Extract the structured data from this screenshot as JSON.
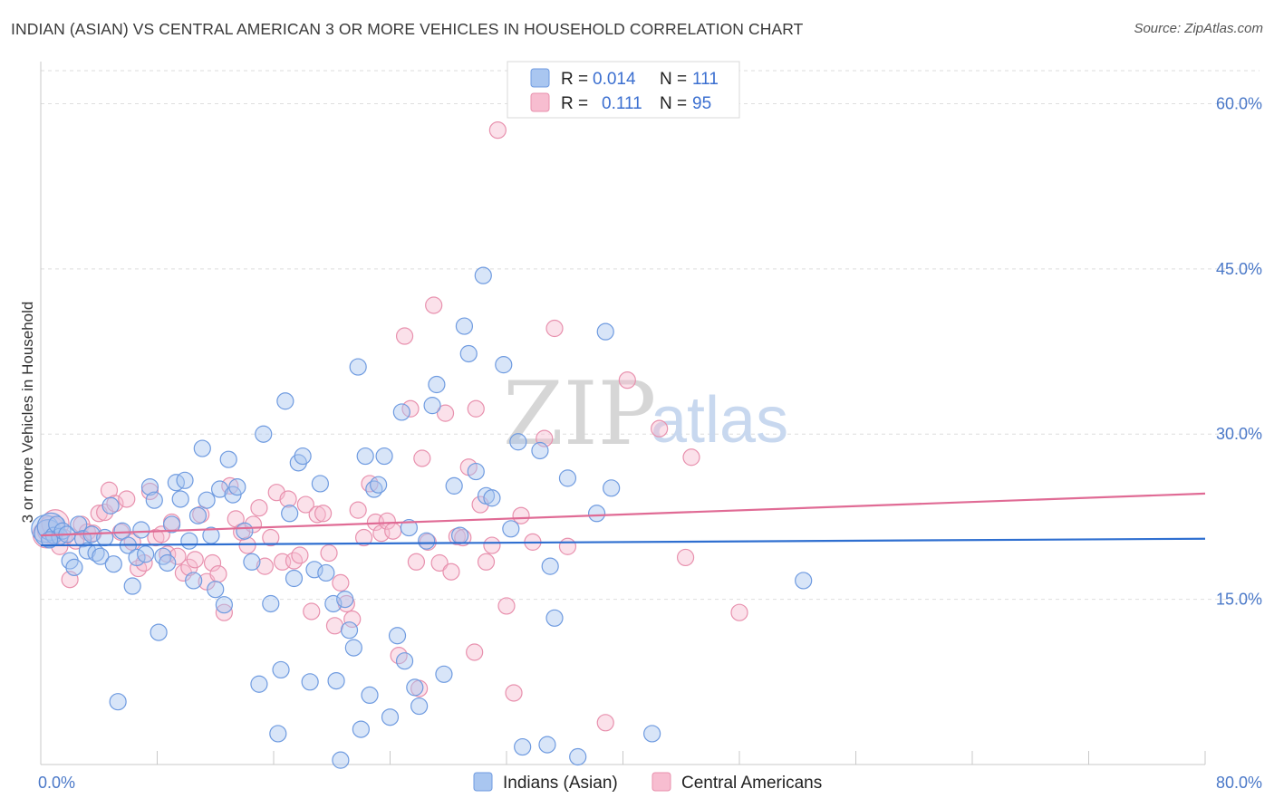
{
  "title": "INDIAN (ASIAN) VS CENTRAL AMERICAN 3 OR MORE VEHICLES IN HOUSEHOLD CORRELATION CHART",
  "source": "Source: ZipAtlas.com",
  "watermark": {
    "zip": "ZIP",
    "atlas": "atlas"
  },
  "legend": {
    "rows": [
      {
        "r_label": "R =",
        "r_value": "0.014",
        "n_label": "N =",
        "n_value": "111"
      },
      {
        "r_label": "R =",
        "r_value": "0.111",
        "n_label": "N =",
        "n_value": "95"
      }
    ]
  },
  "bottom_legend": {
    "series1": "Indians (Asian)",
    "series2": "Central Americans"
  },
  "colors": {
    "blue_fill": "#a9c6f0",
    "blue_stroke": "#6f9be0",
    "blue_line": "#2f6fd0",
    "pink_fill": "#f7bdd0",
    "pink_stroke": "#e891ae",
    "pink_line": "#e06b95",
    "tick_text": "#4a78c8",
    "grid": "#dedede"
  },
  "chart_data": {
    "type": "scatter",
    "title": "INDIAN (ASIAN) VS CENTRAL AMERICAN 3 OR MORE VEHICLES IN HOUSEHOLD CORRELATION CHART",
    "xlabel": "",
    "ylabel": "3 or more Vehicles in Household",
    "xlim": [
      0,
      80
    ],
    "ylim": [
      0,
      63
    ],
    "x_tick_labels": [
      "0.0%",
      "80.0%"
    ],
    "y_ticks": [
      15,
      30,
      45,
      60
    ],
    "y_tick_labels": [
      "15.0%",
      "30.0%",
      "45.0%",
      "60.0%"
    ],
    "grid": true,
    "legend_position": "top-center",
    "series": [
      {
        "name": "Indians (Asian)",
        "r": 0.014,
        "n": 111,
        "trend": {
          "x": [
            0,
            80
          ],
          "y": [
            19.9,
            20.5
          ]
        },
        "points": [
          [
            0.3,
            21.4
          ],
          [
            0.5,
            21.0
          ],
          [
            0.7,
            21.6
          ],
          [
            0.9,
            20.8
          ],
          [
            1.1,
            21.8
          ],
          [
            1.3,
            20.7
          ],
          [
            1.5,
            21.2
          ],
          [
            1.8,
            20.9
          ],
          [
            2.0,
            18.5
          ],
          [
            2.3,
            17.9
          ],
          [
            2.6,
            21.8
          ],
          [
            2.9,
            20.5
          ],
          [
            3.2,
            19.4
          ],
          [
            3.5,
            20.9
          ],
          [
            3.8,
            19.2
          ],
          [
            4.1,
            18.9
          ],
          [
            4.4,
            20.6
          ],
          [
            4.8,
            23.5
          ],
          [
            5.0,
            18.2
          ],
          [
            5.3,
            5.7
          ],
          [
            5.6,
            21.2
          ],
          [
            6.0,
            19.9
          ],
          [
            6.3,
            16.2
          ],
          [
            6.6,
            18.8
          ],
          [
            6.9,
            21.3
          ],
          [
            7.2,
            19.1
          ],
          [
            7.5,
            25.2
          ],
          [
            7.8,
            24.0
          ],
          [
            8.1,
            12.0
          ],
          [
            8.4,
            18.9
          ],
          [
            8.7,
            18.3
          ],
          [
            9.0,
            21.8
          ],
          [
            9.3,
            25.6
          ],
          [
            9.6,
            24.1
          ],
          [
            9.9,
            25.8
          ],
          [
            10.2,
            20.3
          ],
          [
            10.5,
            16.7
          ],
          [
            10.8,
            22.6
          ],
          [
            11.1,
            28.7
          ],
          [
            11.4,
            24.0
          ],
          [
            11.7,
            20.8
          ],
          [
            12.0,
            15.9
          ],
          [
            12.3,
            25.0
          ],
          [
            12.6,
            14.5
          ],
          [
            12.9,
            27.7
          ],
          [
            13.2,
            24.5
          ],
          [
            13.5,
            25.2
          ],
          [
            14.0,
            21.2
          ],
          [
            14.5,
            18.4
          ],
          [
            15.0,
            7.3
          ],
          [
            15.3,
            30.0
          ],
          [
            15.8,
            14.6
          ],
          [
            16.3,
            2.8
          ],
          [
            16.5,
            8.6
          ],
          [
            16.8,
            33.0
          ],
          [
            17.1,
            22.8
          ],
          [
            17.4,
            16.9
          ],
          [
            17.7,
            27.4
          ],
          [
            18.0,
            28.0
          ],
          [
            18.5,
            7.5
          ],
          [
            18.8,
            17.7
          ],
          [
            19.2,
            25.5
          ],
          [
            19.6,
            17.4
          ],
          [
            20.1,
            14.6
          ],
          [
            20.3,
            7.6
          ],
          [
            20.6,
            0.4
          ],
          [
            20.9,
            15.0
          ],
          [
            21.2,
            12.2
          ],
          [
            21.5,
            10.6
          ],
          [
            21.8,
            36.1
          ],
          [
            22.0,
            3.2
          ],
          [
            22.3,
            28.0
          ],
          [
            22.6,
            6.3
          ],
          [
            22.9,
            25.0
          ],
          [
            23.2,
            25.4
          ],
          [
            23.6,
            28.0
          ],
          [
            24.0,
            4.3
          ],
          [
            24.5,
            11.7
          ],
          [
            24.8,
            32.0
          ],
          [
            25.0,
            9.4
          ],
          [
            25.3,
            21.5
          ],
          [
            25.7,
            7.0
          ],
          [
            26.0,
            5.3
          ],
          [
            26.5,
            20.3
          ],
          [
            26.9,
            32.6
          ],
          [
            27.2,
            34.5
          ],
          [
            27.7,
            8.2
          ],
          [
            28.4,
            25.3
          ],
          [
            28.8,
            20.8
          ],
          [
            29.1,
            39.8
          ],
          [
            29.4,
            37.3
          ],
          [
            29.9,
            26.6
          ],
          [
            30.4,
            44.4
          ],
          [
            30.6,
            24.4
          ],
          [
            31.0,
            24.2
          ],
          [
            31.8,
            36.3
          ],
          [
            32.3,
            21.4
          ],
          [
            32.8,
            29.3
          ],
          [
            33.1,
            1.6
          ],
          [
            34.3,
            28.5
          ],
          [
            34.8,
            1.8
          ],
          [
            35.0,
            18.0
          ],
          [
            35.3,
            13.3
          ],
          [
            36.2,
            26.0
          ],
          [
            36.9,
            0.7
          ],
          [
            38.2,
            22.8
          ],
          [
            38.8,
            39.3
          ],
          [
            39.2,
            25.1
          ],
          [
            42.0,
            2.8
          ],
          [
            52.4,
            16.7
          ],
          [
            0.6,
            20.4
          ]
        ]
      },
      {
        "name": "Central Americans",
        "r": 0.111,
        "n": 95,
        "trend": {
          "x": [
            0,
            80
          ],
          "y": [
            20.8,
            24.6
          ]
        },
        "points": [
          [
            0.4,
            20.9
          ],
          [
            0.7,
            21.3
          ],
          [
            1.0,
            21.9
          ],
          [
            1.3,
            19.8
          ],
          [
            1.6,
            20.6
          ],
          [
            2.0,
            16.8
          ],
          [
            2.4,
            20.3
          ],
          [
            2.8,
            21.8
          ],
          [
            3.2,
            21.1
          ],
          [
            3.6,
            21.0
          ],
          [
            4.0,
            22.8
          ],
          [
            4.4,
            22.9
          ],
          [
            4.7,
            24.9
          ],
          [
            5.1,
            23.7
          ],
          [
            5.5,
            21.1
          ],
          [
            5.9,
            24.1
          ],
          [
            6.3,
            20.2
          ],
          [
            6.7,
            17.8
          ],
          [
            7.1,
            18.3
          ],
          [
            7.5,
            24.8
          ],
          [
            7.9,
            20.6
          ],
          [
            8.3,
            20.9
          ],
          [
            8.7,
            19.1
          ],
          [
            9.0,
            22.0
          ],
          [
            9.4,
            18.9
          ],
          [
            9.8,
            17.4
          ],
          [
            10.2,
            17.9
          ],
          [
            10.6,
            18.6
          ],
          [
            11.0,
            22.7
          ],
          [
            11.4,
            16.6
          ],
          [
            11.8,
            18.3
          ],
          [
            12.2,
            17.3
          ],
          [
            12.6,
            13.8
          ],
          [
            13.0,
            25.3
          ],
          [
            13.4,
            22.3
          ],
          [
            13.8,
            21.1
          ],
          [
            14.2,
            19.9
          ],
          [
            14.6,
            21.8
          ],
          [
            15.0,
            23.3
          ],
          [
            15.4,
            18.0
          ],
          [
            15.8,
            20.6
          ],
          [
            16.2,
            24.7
          ],
          [
            16.6,
            18.4
          ],
          [
            17.0,
            24.1
          ],
          [
            17.4,
            18.5
          ],
          [
            17.8,
            19.0
          ],
          [
            18.2,
            23.6
          ],
          [
            18.6,
            13.9
          ],
          [
            19.0,
            22.7
          ],
          [
            19.4,
            22.8
          ],
          [
            19.8,
            19.2
          ],
          [
            20.2,
            12.6
          ],
          [
            20.6,
            16.5
          ],
          [
            21.0,
            14.6
          ],
          [
            21.4,
            13.2
          ],
          [
            21.8,
            23.1
          ],
          [
            22.2,
            20.6
          ],
          [
            22.6,
            25.5
          ],
          [
            23.0,
            22.0
          ],
          [
            23.4,
            21.0
          ],
          [
            23.8,
            22.1
          ],
          [
            24.2,
            21.2
          ],
          [
            24.6,
            9.9
          ],
          [
            25.0,
            38.9
          ],
          [
            25.4,
            32.3
          ],
          [
            25.8,
            18.4
          ],
          [
            26.2,
            27.8
          ],
          [
            26.6,
            20.2
          ],
          [
            27.0,
            41.7
          ],
          [
            27.4,
            18.3
          ],
          [
            27.8,
            31.9
          ],
          [
            28.2,
            17.5
          ],
          [
            28.6,
            20.7
          ],
          [
            29.0,
            20.6
          ],
          [
            29.4,
            27.0
          ],
          [
            29.8,
            10.2
          ],
          [
            30.2,
            23.6
          ],
          [
            30.6,
            18.4
          ],
          [
            31.0,
            19.9
          ],
          [
            31.4,
            57.6
          ],
          [
            32.0,
            14.4
          ],
          [
            32.5,
            6.5
          ],
          [
            33.0,
            22.6
          ],
          [
            33.8,
            20.2
          ],
          [
            34.6,
            29.6
          ],
          [
            35.3,
            39.6
          ],
          [
            36.2,
            19.8
          ],
          [
            38.8,
            3.8
          ],
          [
            40.3,
            34.9
          ],
          [
            42.5,
            30.5
          ],
          [
            44.3,
            18.8
          ],
          [
            44.7,
            27.9
          ],
          [
            48.0,
            13.8
          ],
          [
            26.0,
            6.9
          ],
          [
            29.9,
            32.3
          ]
        ]
      }
    ]
  }
}
